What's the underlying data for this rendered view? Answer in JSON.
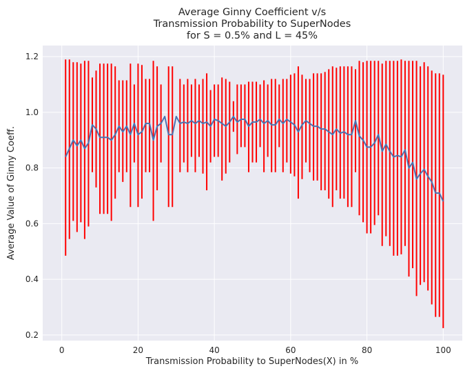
{
  "chart_data": {
    "type": "line",
    "title_lines": [
      "Average Ginny Coefficient v/s",
      "Transmission Probability to SuperNodes",
      "for S = 0.5% and L = 45%"
    ],
    "xlabel": "Transmission Probability to SuperNodes(X) in %",
    "ylabel": "Average Value of Ginny Coeff.",
    "xlim": [
      -5,
      105
    ],
    "ylim": [
      0.18,
      1.24
    ],
    "xticks": [
      0,
      20,
      40,
      60,
      80,
      100
    ],
    "yticks": [
      0.2,
      0.4,
      0.6,
      0.8,
      1.0,
      1.2
    ],
    "ytick_labels": [
      "0.2",
      "0.4",
      "0.6",
      "0.8",
      "1.0",
      "1.2"
    ],
    "grid": true,
    "background": "#eaeaf2",
    "line_color": "#4c72b0",
    "errorbar_color": "#ff0000",
    "x": [
      1,
      2,
      3,
      4,
      5,
      6,
      7,
      8,
      9,
      10,
      11,
      12,
      13,
      14,
      15,
      16,
      17,
      18,
      19,
      20,
      21,
      22,
      23,
      24,
      25,
      26,
      27,
      28,
      29,
      30,
      31,
      32,
      33,
      34,
      35,
      36,
      37,
      38,
      39,
      40,
      41,
      42,
      43,
      44,
      45,
      46,
      47,
      48,
      49,
      50,
      51,
      52,
      53,
      54,
      55,
      56,
      57,
      58,
      59,
      60,
      61,
      62,
      63,
      64,
      65,
      66,
      67,
      68,
      69,
      70,
      71,
      72,
      73,
      74,
      75,
      76,
      77,
      78,
      79,
      80,
      81,
      82,
      83,
      84,
      85,
      86,
      87,
      88,
      89,
      90,
      91,
      92,
      93,
      94,
      95,
      96,
      97,
      98,
      99,
      100
    ],
    "y": [
      0.84,
      0.87,
      0.9,
      0.88,
      0.9,
      0.87,
      0.89,
      0.955,
      0.94,
      0.91,
      0.91,
      0.91,
      0.9,
      0.92,
      0.95,
      0.93,
      0.95,
      0.92,
      0.96,
      0.92,
      0.93,
      0.96,
      0.96,
      0.9,
      0.95,
      0.96,
      0.985,
      0.92,
      0.92,
      0.985,
      0.96,
      0.965,
      0.96,
      0.97,
      0.96,
      0.97,
      0.96,
      0.965,
      0.95,
      0.975,
      0.97,
      0.96,
      0.95,
      0.965,
      0.985,
      0.965,
      0.975,
      0.975,
      0.95,
      0.965,
      0.965,
      0.975,
      0.96,
      0.97,
      0.955,
      0.955,
      0.975,
      0.96,
      0.975,
      0.965,
      0.955,
      0.93,
      0.955,
      0.97,
      0.96,
      0.95,
      0.95,
      0.94,
      0.94,
      0.93,
      0.92,
      0.94,
      0.925,
      0.93,
      0.92,
      0.92,
      0.97,
      0.915,
      0.9,
      0.875,
      0.875,
      0.89,
      0.92,
      0.86,
      0.885,
      0.86,
      0.84,
      0.845,
      0.84,
      0.865,
      0.8,
      0.82,
      0.76,
      0.78,
      0.795,
      0.77,
      0.75,
      0.71,
      0.71,
      0.68
    ],
    "err_lower": [
      0.485,
      0.545,
      0.61,
      0.57,
      0.605,
      0.545,
      0.59,
      0.785,
      0.73,
      0.635,
      0.635,
      0.635,
      0.61,
      0.69,
      0.785,
      0.75,
      0.785,
      0.66,
      0.82,
      0.66,
      0.69,
      0.785,
      0.785,
      0.61,
      0.72,
      0.82,
      0.985,
      0.66,
      0.66,
      0.985,
      0.785,
      0.82,
      0.785,
      0.84,
      0.785,
      0.84,
      0.78,
      0.72,
      0.82,
      0.84,
      0.84,
      0.755,
      0.78,
      0.82,
      0.93,
      0.85,
      0.875,
      0.875,
      0.785,
      0.82,
      0.82,
      0.875,
      0.785,
      0.84,
      0.785,
      0.785,
      0.875,
      0.785,
      0.82,
      0.78,
      0.77,
      0.69,
      0.76,
      0.82,
      0.785,
      0.755,
      0.755,
      0.72,
      0.72,
      0.69,
      0.66,
      0.72,
      0.69,
      0.69,
      0.66,
      0.66,
      0.785,
      0.63,
      0.605,
      0.565,
      0.565,
      0.595,
      0.63,
      0.52,
      0.555,
      0.52,
      0.485,
      0.485,
      0.49,
      0.52,
      0.41,
      0.44,
      0.34,
      0.38,
      0.39,
      0.36,
      0.31,
      0.265,
      0.265,
      0.225
    ],
    "err_upper": [
      1.19,
      1.19,
      1.18,
      1.18,
      1.175,
      1.185,
      1.185,
      1.125,
      1.15,
      1.175,
      1.175,
      1.175,
      1.175,
      1.165,
      1.115,
      1.115,
      1.115,
      1.175,
      1.1,
      1.175,
      1.17,
      1.12,
      1.12,
      1.185,
      1.165,
      1.1,
      0.985,
      1.165,
      1.165,
      0.985,
      1.12,
      1.1,
      1.12,
      1.1,
      1.12,
      1.1,
      1.12,
      1.14,
      1.08,
      1.1,
      1.1,
      1.125,
      1.12,
      1.11,
      1.04,
      1.1,
      1.1,
      1.1,
      1.11,
      1.11,
      1.11,
      1.1,
      1.115,
      1.1,
      1.12,
      1.12,
      1.1,
      1.12,
      1.12,
      1.135,
      1.14,
      1.165,
      1.135,
      1.12,
      1.12,
      1.14,
      1.14,
      1.14,
      1.145,
      1.155,
      1.165,
      1.16,
      1.165,
      1.165,
      1.165,
      1.165,
      1.155,
      1.185,
      1.18,
      1.185,
      1.185,
      1.185,
      1.185,
      1.175,
      1.185,
      1.185,
      1.185,
      1.185,
      1.19,
      1.185,
      1.185,
      1.185,
      1.185,
      1.165,
      1.18,
      1.165,
      1.15,
      1.14,
      1.14,
      1.135
    ]
  }
}
